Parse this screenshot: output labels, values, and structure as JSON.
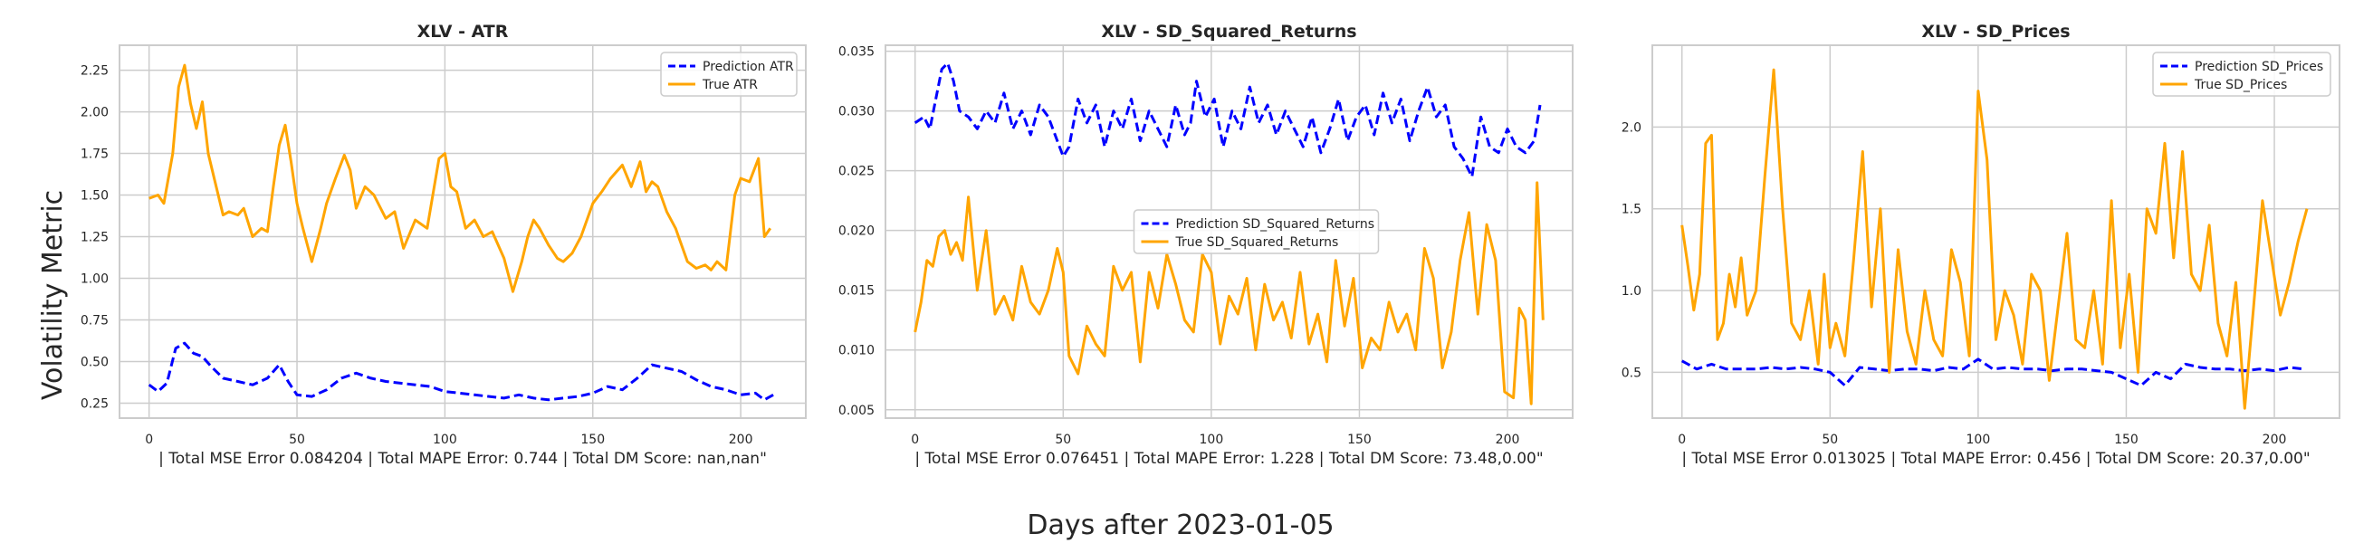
{
  "figure": {
    "ylabel": "Volatility Metric",
    "xlabel": "Days after 2023-01-05",
    "prediction_color": "#0000ff",
    "true_color": "#ffa500"
  },
  "chart_data": [
    {
      "type": "line",
      "title": "XLV - ATR",
      "xlabel": "| Total MSE Error 0.084204 | Total MAPE Error: 0.744 | Total DM Score: nan,nan\"",
      "xlim": [
        -10,
        222
      ],
      "ylim": [
        0.16,
        2.4
      ],
      "xticks": [
        0,
        50,
        100,
        150,
        200
      ],
      "yticks": [
        0.25,
        0.5,
        0.75,
        1.0,
        1.25,
        1.5,
        1.75,
        2.0,
        2.25
      ],
      "ytick_labels": [
        "0.25",
        "0.50",
        "0.75",
        "1.00",
        "1.25",
        "1.50",
        "1.75",
        "2.00",
        "2.25"
      ],
      "legend_position": "top-right",
      "series": [
        {
          "name": "Prediction ATR",
          "style": "dashed",
          "x": [
            0,
            3,
            6,
            9,
            12,
            15,
            18,
            21,
            25,
            30,
            35,
            40,
            44,
            47,
            50,
            55,
            60,
            65,
            70,
            75,
            80,
            85,
            90,
            95,
            100,
            105,
            110,
            115,
            120,
            125,
            130,
            135,
            140,
            145,
            150,
            155,
            160,
            165,
            170,
            175,
            180,
            185,
            190,
            195,
            200,
            205,
            208,
            211
          ],
          "y": [
            0.36,
            0.32,
            0.37,
            0.58,
            0.61,
            0.55,
            0.53,
            0.47,
            0.4,
            0.38,
            0.36,
            0.4,
            0.48,
            0.38,
            0.3,
            0.29,
            0.33,
            0.4,
            0.43,
            0.4,
            0.38,
            0.37,
            0.36,
            0.35,
            0.32,
            0.31,
            0.3,
            0.29,
            0.28,
            0.3,
            0.28,
            0.27,
            0.28,
            0.29,
            0.31,
            0.35,
            0.33,
            0.4,
            0.48,
            0.46,
            0.44,
            0.39,
            0.35,
            0.33,
            0.3,
            0.31,
            0.27,
            0.3
          ]
        },
        {
          "name": "True ATR",
          "style": "solid",
          "x": [
            0,
            3,
            5,
            8,
            10,
            12,
            14,
            16,
            18,
            20,
            22,
            25,
            27,
            30,
            32,
            35,
            38,
            40,
            42,
            44,
            46,
            48,
            50,
            52,
            55,
            58,
            60,
            63,
            66,
            68,
            70,
            73,
            76,
            80,
            83,
            86,
            90,
            94,
            98,
            100,
            102,
            104,
            107,
            110,
            113,
            116,
            120,
            123,
            126,
            128,
            130,
            132,
            135,
            138,
            140,
            143,
            146,
            150,
            153,
            156,
            160,
            163,
            166,
            168,
            170,
            172,
            175,
            178,
            182,
            185,
            188,
            190,
            192,
            195,
            198,
            200,
            203,
            206,
            208,
            210
          ],
          "y": [
            1.48,
            1.5,
            1.45,
            1.75,
            2.15,
            2.28,
            2.05,
            1.9,
            2.06,
            1.75,
            1.6,
            1.38,
            1.4,
            1.38,
            1.42,
            1.25,
            1.3,
            1.28,
            1.55,
            1.8,
            1.92,
            1.7,
            1.45,
            1.3,
            1.1,
            1.3,
            1.45,
            1.6,
            1.74,
            1.65,
            1.42,
            1.55,
            1.5,
            1.36,
            1.4,
            1.18,
            1.35,
            1.3,
            1.72,
            1.75,
            1.55,
            1.52,
            1.3,
            1.35,
            1.25,
            1.28,
            1.12,
            0.92,
            1.1,
            1.25,
            1.35,
            1.3,
            1.2,
            1.12,
            1.1,
            1.15,
            1.25,
            1.45,
            1.52,
            1.6,
            1.68,
            1.55,
            1.7,
            1.52,
            1.58,
            1.55,
            1.4,
            1.3,
            1.1,
            1.06,
            1.08,
            1.05,
            1.1,
            1.05,
            1.5,
            1.6,
            1.58,
            1.72,
            1.25,
            1.3
          ]
        }
      ]
    },
    {
      "type": "line",
      "title": "XLV - SD_Squared_Returns",
      "xlabel": "| Total MSE Error 0.076451 | Total MAPE Error: 1.228 | Total DM Score: 73.48,0.00\"",
      "xlim": [
        -10,
        222
      ],
      "ylim": [
        0.0043,
        0.0355
      ],
      "xticks": [
        0,
        50,
        100,
        150,
        200
      ],
      "yticks": [
        0.005,
        0.01,
        0.015,
        0.02,
        0.025,
        0.03,
        0.035
      ],
      "ytick_labels": [
        "0.005",
        "0.010",
        "0.015",
        "0.020",
        "0.025",
        "0.030",
        "0.035"
      ],
      "legend_position": "center",
      "series": [
        {
          "name": "Prediction SD_Squared_Returns",
          "style": "dashed",
          "x": [
            0,
            3,
            5,
            7,
            9,
            11,
            13,
            15,
            18,
            21,
            24,
            27,
            30,
            33,
            36,
            39,
            42,
            45,
            48,
            50,
            52,
            55,
            58,
            61,
            64,
            67,
            70,
            73,
            76,
            79,
            82,
            85,
            88,
            91,
            93,
            95,
            98,
            101,
            104,
            107,
            110,
            113,
            116,
            119,
            122,
            125,
            128,
            131,
            134,
            137,
            140,
            143,
            146,
            149,
            152,
            155,
            158,
            161,
            164,
            167,
            170,
            173,
            176,
            179,
            182,
            185,
            188,
            191,
            194,
            197,
            200,
            203,
            206,
            209,
            211
          ],
          "y": [
            0.029,
            0.0295,
            0.0285,
            0.031,
            0.0335,
            0.034,
            0.0325,
            0.03,
            0.0295,
            0.0285,
            0.03,
            0.029,
            0.0315,
            0.0285,
            0.03,
            0.028,
            0.0305,
            0.0295,
            0.0275,
            0.0262,
            0.027,
            0.031,
            0.029,
            0.0305,
            0.027,
            0.03,
            0.0285,
            0.031,
            0.0275,
            0.03,
            0.0285,
            0.027,
            0.0305,
            0.028,
            0.029,
            0.0325,
            0.0295,
            0.031,
            0.027,
            0.03,
            0.0285,
            0.032,
            0.029,
            0.0305,
            0.028,
            0.03,
            0.0285,
            0.027,
            0.0295,
            0.0265,
            0.0285,
            0.031,
            0.0275,
            0.0295,
            0.0305,
            0.028,
            0.0315,
            0.029,
            0.031,
            0.0275,
            0.03,
            0.032,
            0.0295,
            0.0305,
            0.027,
            0.026,
            0.0245,
            0.0295,
            0.027,
            0.0265,
            0.0285,
            0.027,
            0.0265,
            0.0275,
            0.0305
          ]
        },
        {
          "name": "True SD_Squared_Returns",
          "style": "solid",
          "x": [
            0,
            2,
            4,
            6,
            8,
            10,
            12,
            14,
            16,
            18,
            21,
            24,
            27,
            30,
            33,
            36,
            39,
            42,
            45,
            48,
            50,
            52,
            55,
            58,
            61,
            64,
            67,
            70,
            73,
            76,
            79,
            82,
            85,
            88,
            91,
            94,
            97,
            100,
            103,
            106,
            109,
            112,
            115,
            118,
            121,
            124,
            127,
            130,
            133,
            136,
            139,
            142,
            145,
            148,
            151,
            154,
            157,
            160,
            163,
            166,
            169,
            172,
            175,
            178,
            181,
            184,
            187,
            190,
            193,
            196,
            199,
            202,
            204,
            206,
            208,
            210,
            212
          ],
          "y": [
            0.0115,
            0.014,
            0.0175,
            0.017,
            0.0195,
            0.02,
            0.018,
            0.019,
            0.0175,
            0.0228,
            0.015,
            0.02,
            0.013,
            0.0145,
            0.0125,
            0.017,
            0.014,
            0.013,
            0.015,
            0.0185,
            0.0165,
            0.0095,
            0.008,
            0.012,
            0.0105,
            0.0095,
            0.017,
            0.015,
            0.0165,
            0.009,
            0.0165,
            0.0135,
            0.018,
            0.0155,
            0.0125,
            0.0115,
            0.018,
            0.0165,
            0.0105,
            0.0145,
            0.013,
            0.016,
            0.01,
            0.0155,
            0.0125,
            0.014,
            0.011,
            0.0165,
            0.0105,
            0.013,
            0.009,
            0.0175,
            0.012,
            0.016,
            0.0085,
            0.011,
            0.01,
            0.014,
            0.0115,
            0.013,
            0.01,
            0.0185,
            0.016,
            0.0085,
            0.0115,
            0.0175,
            0.0215,
            0.013,
            0.0205,
            0.0175,
            0.0065,
            0.006,
            0.0135,
            0.0125,
            0.0055,
            0.024,
            0.0125
          ]
        }
      ]
    },
    {
      "type": "line",
      "title": "XLV - SD_Prices",
      "xlabel": "| Total MSE Error 0.013025 | Total MAPE Error: 0.456 | Total DM Score: 20.37,0.00\"",
      "xlim": [
        -10,
        222
      ],
      "ylim": [
        0.22,
        2.5
      ],
      "xticks": [
        0,
        50,
        100,
        150,
        200
      ],
      "yticks": [
        0.5,
        1.0,
        1.5,
        2.0
      ],
      "ytick_labels": [
        "0.5",
        "1.0",
        "1.5",
        "2.0"
      ],
      "legend_position": "top-right",
      "series": [
        {
          "name": "Prediction SD_Prices",
          "style": "dashed",
          "x": [
            0,
            5,
            10,
            15,
            20,
            25,
            30,
            35,
            40,
            45,
            50,
            55,
            60,
            65,
            70,
            75,
            80,
            85,
            90,
            95,
            100,
            105,
            110,
            115,
            120,
            125,
            130,
            135,
            140,
            145,
            150,
            155,
            160,
            165,
            170,
            175,
            180,
            185,
            190,
            195,
            200,
            205,
            210
          ],
          "y": [
            0.57,
            0.52,
            0.55,
            0.52,
            0.52,
            0.52,
            0.53,
            0.52,
            0.53,
            0.52,
            0.5,
            0.42,
            0.53,
            0.52,
            0.51,
            0.52,
            0.52,
            0.51,
            0.53,
            0.52,
            0.58,
            0.52,
            0.53,
            0.52,
            0.52,
            0.51,
            0.52,
            0.52,
            0.51,
            0.5,
            0.46,
            0.42,
            0.5,
            0.46,
            0.55,
            0.53,
            0.52,
            0.52,
            0.51,
            0.52,
            0.51,
            0.53,
            0.52
          ]
        },
        {
          "name": "True SD_Prices",
          "style": "solid",
          "x": [
            0,
            2,
            4,
            6,
            8,
            10,
            12,
            14,
            16,
            18,
            20,
            22,
            25,
            28,
            31,
            34,
            37,
            40,
            43,
            46,
            48,
            50,
            52,
            55,
            58,
            61,
            64,
            67,
            70,
            73,
            76,
            79,
            82,
            85,
            88,
            91,
            94,
            97,
            100,
            103,
            106,
            109,
            112,
            115,
            118,
            121,
            124,
            127,
            130,
            133,
            136,
            139,
            142,
            145,
            148,
            151,
            154,
            157,
            160,
            163,
            166,
            169,
            172,
            175,
            178,
            181,
            184,
            187,
            190,
            193,
            196,
            199,
            202,
            205,
            208,
            211
          ],
          "y": [
            1.4,
            1.15,
            0.88,
            1.1,
            1.9,
            1.95,
            0.7,
            0.8,
            1.1,
            0.9,
            1.2,
            0.85,
            1.0,
            1.7,
            2.35,
            1.5,
            0.8,
            0.7,
            1.0,
            0.55,
            1.1,
            0.65,
            0.8,
            0.6,
            1.2,
            1.85,
            0.9,
            1.5,
            0.5,
            1.25,
            0.75,
            0.55,
            1.0,
            0.7,
            0.6,
            1.25,
            1.05,
            0.6,
            2.22,
            1.8,
            0.7,
            1.0,
            0.85,
            0.55,
            1.1,
            1.0,
            0.45,
            0.9,
            1.35,
            0.7,
            0.65,
            1.0,
            0.55,
            1.55,
            0.65,
            1.1,
            0.5,
            1.5,
            1.35,
            1.9,
            1.2,
            1.85,
            1.1,
            1.0,
            1.4,
            0.8,
            0.6,
            1.05,
            0.28,
            0.9,
            1.55,
            1.2,
            0.85,
            1.05,
            1.3,
            1.5
          ]
        }
      ]
    }
  ]
}
